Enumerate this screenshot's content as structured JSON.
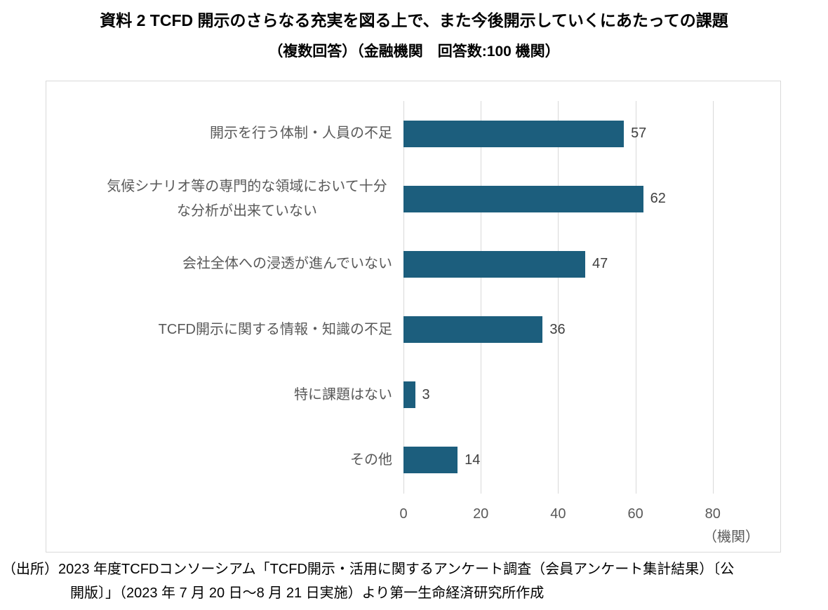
{
  "page": {
    "title_line1": "資料 2 TCFD 開示のさらなる充実を図る上で、また今後開示していくにあたっての課題",
    "title_line2": "（複数回答）（金融機関　回答数:100 機関）",
    "source_line1": "（出所）2023 年度TCFDコンソーシアム「TCFD開示・活用に関するアンケート調査（会員アンケート集計結果）〔公",
    "source_line2": "開版〕」（2023 年 7 月 20 日～8 月 21 日実施）より第一生命経済研究所作成"
  },
  "chart_data": {
    "type": "bar",
    "orientation": "horizontal",
    "title": "資料 2 TCFD 開示のさらなる充実を図る上で、また今後開示していくにあたっての課題",
    "subtitle": "（複数回答）（金融機関　回答数:100 機関）",
    "categories": [
      "開示を行う体制・人員の不足",
      "気候シナリオ等の専門的な領域において十分な分析が出来ていない",
      "会社全体への浸透が進んでいない",
      "TCFD開示に関する情報・知識の不足",
      "特に課題はない",
      "その他"
    ],
    "values": [
      57,
      62,
      47,
      36,
      3,
      14
    ],
    "xlabel": "",
    "ylabel": "",
    "unit_label": "（機関）",
    "xticks": [
      0,
      20,
      40,
      60,
      80
    ],
    "xlim": [
      0,
      97
    ],
    "grid": true,
    "legend": false,
    "data_labels": true,
    "bar_color": "#1C5E7D",
    "gridline_color": "#D9D9D9",
    "axis_text_color": "#595959",
    "data_label_color": "#404040"
  }
}
